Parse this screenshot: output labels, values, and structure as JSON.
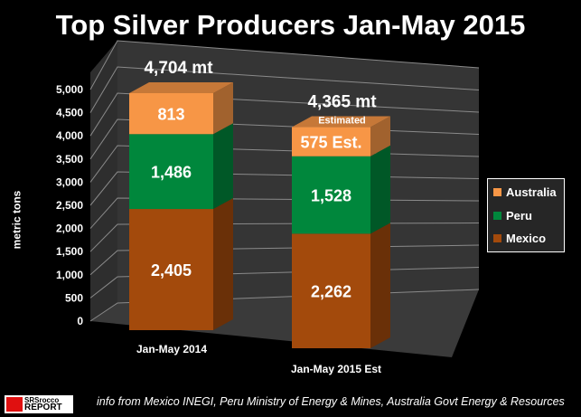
{
  "title": "Top Silver Producers Jan-May 2015",
  "source": "info from Mexico INEGI, Peru Ministry of Energy & Mines, Australia Govt Energy & Resources",
  "logo": {
    "line1": "SRSrocco",
    "line2": "REPORT"
  },
  "chart_data": {
    "type": "bar",
    "stacked": true,
    "three_d": true,
    "title": "Top Silver Producers Jan-May 2015",
    "ylabel": "metric tons",
    "ylim": [
      0,
      5000
    ],
    "yticks": [
      "0",
      "500",
      "1,000",
      "1,500",
      "2,000",
      "2,500",
      "3,000",
      "3,500",
      "4,000",
      "4,500",
      "5,000"
    ],
    "categories": [
      "Jan-May 2014",
      "Jan-May 2015 Est"
    ],
    "series": [
      {
        "name": "Mexico",
        "values": [
          2405,
          2262
        ],
        "labels": [
          "2,405",
          "2,262"
        ],
        "color": "#a34a0c"
      },
      {
        "name": "Peru",
        "values": [
          1486,
          1528
        ],
        "labels": [
          "1,486",
          "1,528"
        ],
        "color": "#00873c"
      },
      {
        "name": "Australia",
        "values": [
          813,
          575
        ],
        "labels": [
          "813",
          "575 Est."
        ],
        "color": "#f79646"
      }
    ],
    "totals": [
      "4,704 mt",
      "4,365 mt"
    ],
    "total_note": [
      "",
      "Estimated"
    ],
    "legend_position": "right",
    "grid": true
  }
}
